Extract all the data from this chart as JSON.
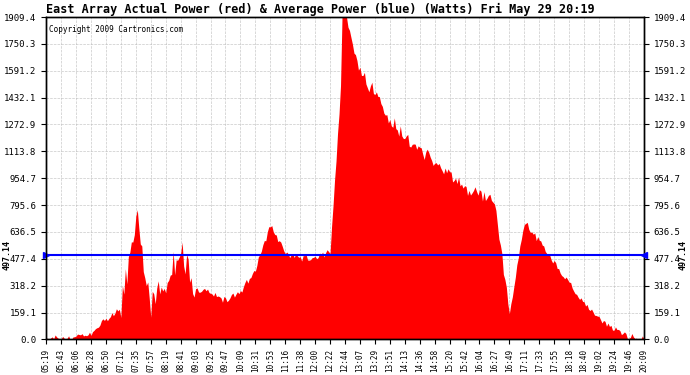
{
  "title": "East Array Actual Power (red) & Average Power (blue) (Watts) Fri May 29 20:19",
  "copyright": "Copyright 2009 Cartronics.com",
  "average_power": 497.14,
  "y_max": 1909.4,
  "y_ticks": [
    0.0,
    159.1,
    318.2,
    477.4,
    636.5,
    795.6,
    954.7,
    1113.8,
    1272.9,
    1432.1,
    1591.2,
    1750.3,
    1909.4
  ],
  "x_labels": [
    "05:19",
    "05:43",
    "06:06",
    "06:28",
    "06:50",
    "07:12",
    "07:35",
    "07:57",
    "08:19",
    "08:41",
    "09:03",
    "09:25",
    "09:47",
    "10:09",
    "10:31",
    "10:53",
    "11:16",
    "11:38",
    "12:00",
    "12:22",
    "12:44",
    "13:07",
    "13:29",
    "13:51",
    "14:13",
    "14:36",
    "14:58",
    "15:20",
    "15:42",
    "16:04",
    "16:27",
    "16:49",
    "17:11",
    "17:33",
    "17:55",
    "18:18",
    "18:40",
    "19:02",
    "19:24",
    "19:46",
    "20:09"
  ],
  "bg_color": "#ffffff",
  "fill_color": "#ff0000",
  "line_color": "#0000ff",
  "grid_color": "#bbbbbb",
  "title_color": "#000000",
  "figsize": [
    6.9,
    3.75
  ],
  "dpi": 100
}
